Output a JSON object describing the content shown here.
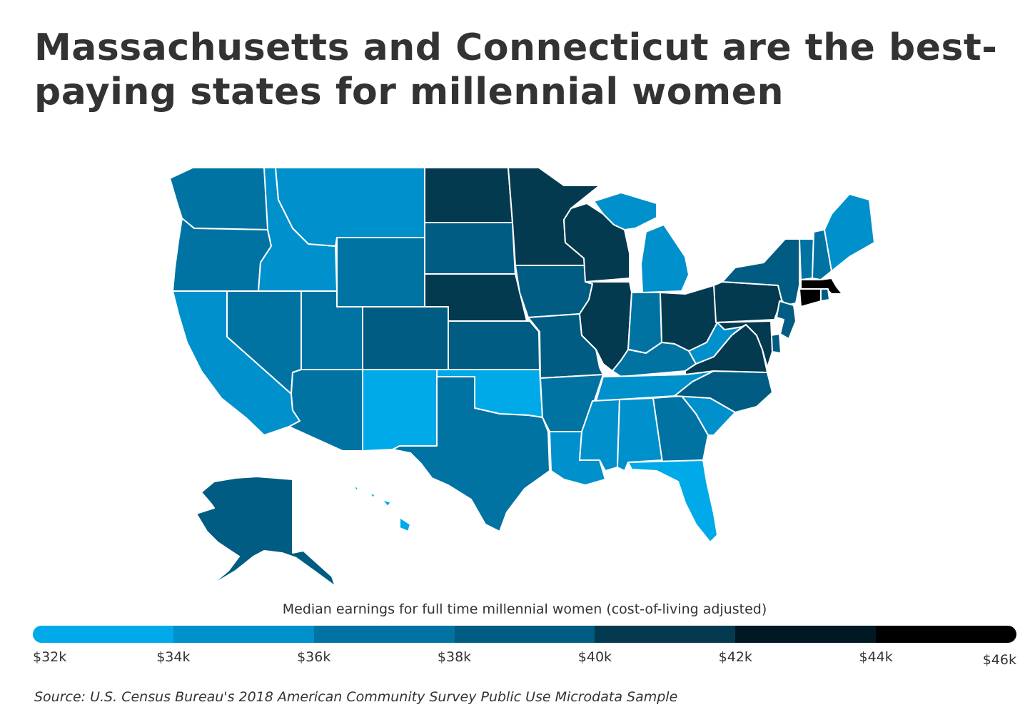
{
  "title": "Massachusetts and Connecticut are the best-paying states for millennial women",
  "legend": {
    "title": "Median earnings for full time millennial women (cost-of-living adjusted)",
    "ticks": [
      "$32k",
      "$34k",
      "$36k",
      "$38k",
      "$40k",
      "$42k",
      "$44k",
      "$46k"
    ],
    "colors": [
      "#00aae8",
      "#0090cb",
      "#0073a3",
      "#005c82",
      "#043a4f",
      "#001824",
      "#000000"
    ]
  },
  "source": "Source:  U.S. Census Bureau's 2018 American Community Survey Public Use Microdata Sample",
  "map_data": {
    "bins": [
      "$32k-$34k",
      "$34k-$36k",
      "$36k-$38k",
      "$38k-$40k",
      "$40k-$42k",
      "$42k-$44k",
      "$44k-$46k"
    ],
    "states": {
      "WA": 2,
      "OR": 2,
      "CA": 1,
      "NV": 2,
      "ID": 1,
      "MT": 1,
      "WY": 2,
      "UT": 2,
      "AZ": 2,
      "CO": 3,
      "NM": 0,
      "ND": 4,
      "SD": 3,
      "NE": 4,
      "KS": 3,
      "OK": 0,
      "TX": 2,
      "MN": 4,
      "IA": 3,
      "MO": 3,
      "AR": 2,
      "LA": 1,
      "WI": 4,
      "IL": 4,
      "MI": 1,
      "IN": 2,
      "OH": 4,
      "KY": 2,
      "TN": 1,
      "MS": 1,
      "AL": 1,
      "GA": 2,
      "FL": 0,
      "SC": 1,
      "NC": 3,
      "VA": 4,
      "WV": 1,
      "PA": 4,
      "NY": 3,
      "NJ": 3,
      "DE": 3,
      "MD": 4,
      "VT": 2,
      "NH": 2,
      "ME": 1,
      "MA": 6,
      "CT": 6,
      "RI": 3,
      "AK": 3,
      "HI": 0
    }
  }
}
